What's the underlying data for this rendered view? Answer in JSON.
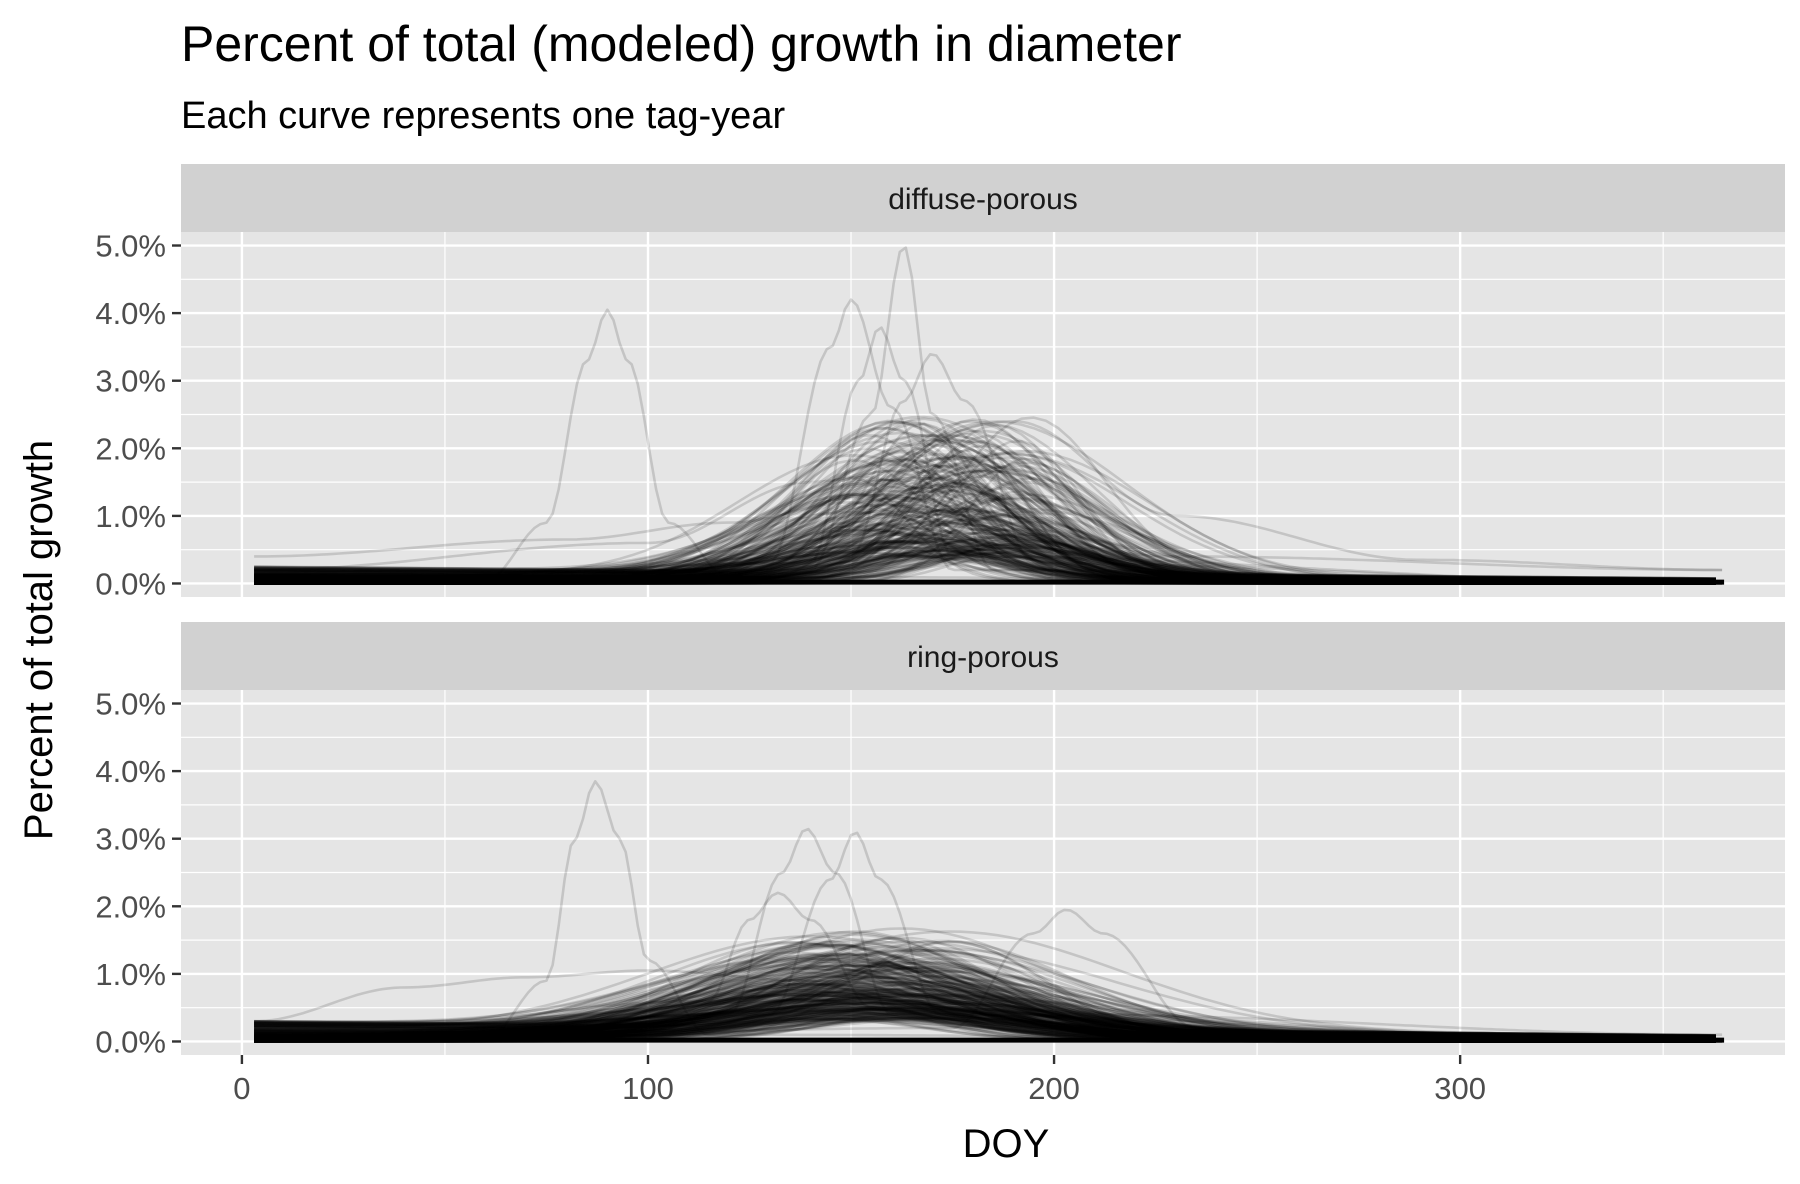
{
  "chart_data": {
    "type": "line",
    "title": "Percent of total (modeled) growth in diameter",
    "subtitle": "Each curve represents one tag-year",
    "xlabel": "DOY",
    "ylabel": "Percent of total growth",
    "xlim": [
      -15,
      380
    ],
    "ylim": [
      -0.2,
      5.2
    ],
    "x_ticks": [
      0,
      100,
      200,
      300
    ],
    "x_tick_labels": [
      "0",
      "100",
      "200",
      "300"
    ],
    "y_ticks": [
      0,
      1,
      2,
      3,
      4,
      5
    ],
    "y_tick_labels": [
      "0.0%",
      "1.0%",
      "2.0%",
      "3.0%",
      "4.0%",
      "5.0%"
    ],
    "grid": true,
    "legend": "none",
    "line_color": "#000000",
    "line_opacity": 0.14,
    "panel_background": "#e5e5e5",
    "strip_background": "#d1d1d1",
    "facets": [
      {
        "name": "diffuse-porous",
        "curve_family": {
          "count": 260,
          "x_range": [
            3,
            365
          ],
          "peak_doy": [
            150,
            195
          ],
          "peak_value": [
            0.4,
            2.4
          ],
          "sd_days": [
            13,
            32
          ],
          "baseline": [
            0.0,
            0.25
          ]
        },
        "notable_curves": [
          {
            "x": [
              3,
              60,
              75,
              85,
              90,
              95,
              105,
              120,
              365
            ],
            "y": [
              0.0,
              0.05,
              0.9,
              3.3,
              4.05,
              3.3,
              0.9,
              0.1,
              0.0
            ]
          },
          {
            "x": [
              3,
              130,
              145,
              150,
              160,
              175,
              365
            ],
            "y": [
              0.0,
              0.3,
              3.5,
              4.2,
              2.6,
              0.2,
              0.0
            ]
          },
          {
            "x": [
              3,
              140,
              155,
              163,
              170,
              185,
              365
            ],
            "y": [
              0.0,
              0.2,
              2.5,
              5.0,
              2.5,
              0.2,
              0.0
            ]
          },
          {
            "x": [
              3,
              140,
              152,
              157,
              163,
              175,
              365
            ],
            "y": [
              0.0,
              0.3,
              3.0,
              3.8,
              3.0,
              0.4,
              0.0
            ]
          },
          {
            "x": [
              3,
              150,
              163,
              170,
              178,
              195,
              365
            ],
            "y": [
              0.0,
              0.4,
              2.7,
              3.4,
              2.7,
              0.3,
              0.0
            ]
          },
          {
            "x": [
              3,
              100,
              140,
              190,
              230,
              290,
              365
            ],
            "y": [
              0.2,
              0.6,
              1.5,
              2.4,
              1.0,
              0.35,
              0.2
            ]
          },
          {
            "x": [
              3,
              80,
              120,
              150,
              170,
              230,
              365
            ],
            "y": [
              0.4,
              0.65,
              0.9,
              1.2,
              0.9,
              0.4,
              0.2
            ]
          }
        ]
      },
      {
        "name": "ring-porous",
        "curve_family": {
          "count": 280,
          "x_range": [
            3,
            365
          ],
          "peak_doy": [
            135,
            175
          ],
          "peak_value": [
            0.3,
            1.5
          ],
          "sd_days": [
            22,
            45
          ],
          "baseline": [
            0.0,
            0.3
          ]
        },
        "notable_curves": [
          {
            "x": [
              3,
              60,
              75,
              82,
              87,
              93,
              100,
              115,
              365
            ],
            "y": [
              0.0,
              0.05,
              0.9,
              3.0,
              3.85,
              3.0,
              1.2,
              0.1,
              0.0
            ]
          },
          {
            "x": [
              3,
              120,
              133,
              139,
              146,
              160,
              365
            ],
            "y": [
              0.0,
              0.4,
              2.5,
              3.15,
              2.5,
              0.4,
              0.0
            ]
          },
          {
            "x": [
              3,
              130,
              145,
              151,
              157,
              172,
              365
            ],
            "y": [
              0.0,
              0.4,
              2.4,
              3.1,
              2.4,
              0.4,
              0.0
            ]
          },
          {
            "x": [
              3,
              115,
              125,
              132,
              140,
              155,
              365
            ],
            "y": [
              0.0,
              0.6,
              1.8,
              2.2,
              1.8,
              0.5,
              0.0
            ]
          },
          {
            "x": [
              3,
              175,
              195,
              203,
              212,
              235,
              365
            ],
            "y": [
              0.0,
              0.2,
              1.6,
              1.95,
              1.6,
              0.2,
              0.0
            ]
          },
          {
            "x": [
              3,
              40,
              70,
              100,
              140,
              200,
              365
            ],
            "y": [
              0.3,
              0.8,
              0.95,
              1.05,
              0.9,
              0.4,
              0.1
            ]
          }
        ]
      }
    ]
  }
}
